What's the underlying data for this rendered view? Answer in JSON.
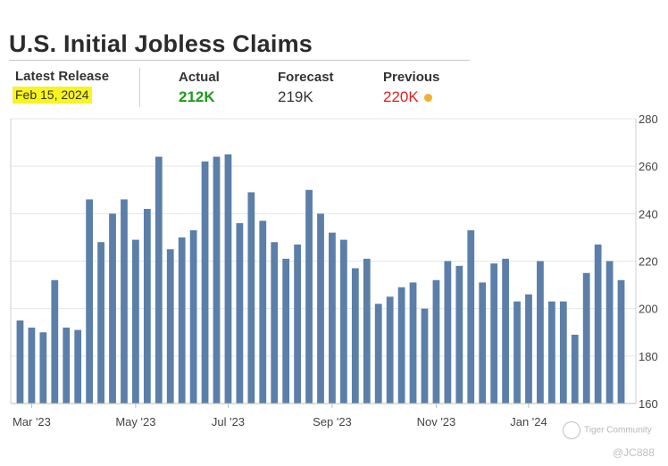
{
  "header": {
    "title": "U.S. Initial Jobless Claims"
  },
  "stats": {
    "latest_release_label": "Latest Release",
    "latest_release_date": "Feb 15, 2024",
    "actual_label": "Actual",
    "actual_value": "212K",
    "forecast_label": "Forecast",
    "forecast_value": "219K",
    "previous_label": "Previous",
    "previous_value": "220K"
  },
  "colors": {
    "bar": "#5b7fa8",
    "actual": "#1e9a1e",
    "previous": "#dd2222",
    "dot": "#f0b030"
  },
  "chart_data": {
    "type": "bar",
    "title": "",
    "xlabel": "",
    "ylabel": "",
    "ylim": [
      160,
      280
    ],
    "yticks": [
      "160",
      "180",
      "200",
      "220",
      "240",
      "260",
      "280"
    ],
    "axis_position": "right",
    "grid": true,
    "month_ticks": [
      {
        "label": "Mar '23",
        "index": 1
      },
      {
        "label": "May '23",
        "index": 10
      },
      {
        "label": "Jul '23",
        "index": 18
      },
      {
        "label": "Sep '23",
        "index": 27
      },
      {
        "label": "Nov '23",
        "index": 36
      },
      {
        "label": "Jan '24",
        "index": 44
      }
    ],
    "values": [
      195,
      192,
      190,
      212,
      192,
      191,
      246,
      228,
      240,
      246,
      229,
      242,
      264,
      225,
      230,
      233,
      262,
      264,
      265,
      236,
      249,
      237,
      228,
      221,
      227,
      250,
      240,
      232,
      229,
      217,
      221,
      202,
      205,
      209,
      211,
      200,
      212,
      220,
      218,
      233,
      211,
      219,
      221,
      203,
      206,
      220,
      203,
      203,
      189,
      215,
      227,
      220,
      212
    ]
  },
  "watermark": {
    "brand": "Tiger Community",
    "handle": "@JC888"
  }
}
